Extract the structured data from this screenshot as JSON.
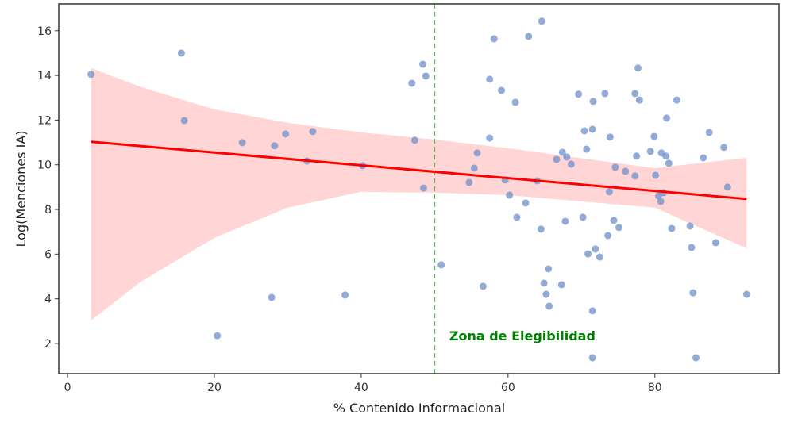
{
  "chart_data": {
    "type": "scatter",
    "title": "",
    "xlabel": "% Contenido Informacional",
    "ylabel": "Log(Menciones IA)",
    "xlim": [
      -1.2,
      96.9
    ],
    "ylim": [
      0.65,
      17.2
    ],
    "xticks": [
      0,
      20,
      40,
      60,
      80
    ],
    "yticks": [
      2,
      4,
      6,
      8,
      10,
      12,
      14,
      16
    ],
    "grid": false,
    "colors": {
      "points": "#6f8fc9",
      "line": "#ff0000",
      "band": "#ffb3b3",
      "threshold": "#5cb85c",
      "annotation": "#008000"
    },
    "threshold_x": 50,
    "annotation": {
      "text": "Zona de Elegibilidad",
      "x": 52,
      "y": 2.15
    },
    "points": [
      [
        3.2,
        14.05
      ],
      [
        15.5,
        15.0
      ],
      [
        15.9,
        11.98
      ],
      [
        20.4,
        2.35
      ],
      [
        23.8,
        10.99
      ],
      [
        27.8,
        4.06
      ],
      [
        28.2,
        10.85
      ],
      [
        29.7,
        11.38
      ],
      [
        32.6,
        10.17
      ],
      [
        33.4,
        11.49
      ],
      [
        37.8,
        4.17
      ],
      [
        40.2,
        9.96
      ],
      [
        46.9,
        13.65
      ],
      [
        47.3,
        11.1
      ],
      [
        48.4,
        14.5
      ],
      [
        48.5,
        8.96
      ],
      [
        48.8,
        13.97
      ],
      [
        50.9,
        5.52
      ],
      [
        54.7,
        9.21
      ],
      [
        55.4,
        9.85
      ],
      [
        55.8,
        10.53
      ],
      [
        56.6,
        4.56
      ],
      [
        57.5,
        11.2
      ],
      [
        57.5,
        13.83
      ],
      [
        58.1,
        15.64
      ],
      [
        59.1,
        13.33
      ],
      [
        59.6,
        9.32
      ],
      [
        60.2,
        8.64
      ],
      [
        61.0,
        12.8
      ],
      [
        61.2,
        7.65
      ],
      [
        62.4,
        8.29
      ],
      [
        62.8,
        15.75
      ],
      [
        64.0,
        9.28
      ],
      [
        64.5,
        7.12
      ],
      [
        64.6,
        16.43
      ],
      [
        64.9,
        4.7
      ],
      [
        65.2,
        4.2
      ],
      [
        65.5,
        5.34
      ],
      [
        65.6,
        3.67
      ],
      [
        66.6,
        10.24
      ],
      [
        67.3,
        4.63
      ],
      [
        67.4,
        10.56
      ],
      [
        67.8,
        7.47
      ],
      [
        68.0,
        10.35
      ],
      [
        68.6,
        10.03
      ],
      [
        69.6,
        13.16
      ],
      [
        70.2,
        7.65
      ],
      [
        70.4,
        11.52
      ],
      [
        70.7,
        10.7
      ],
      [
        70.9,
        6.01
      ],
      [
        71.5,
        11.59
      ],
      [
        71.5,
        3.46
      ],
      [
        71.5,
        1.36
      ],
      [
        71.6,
        12.84
      ],
      [
        71.9,
        6.23
      ],
      [
        72.5,
        5.87
      ],
      [
        73.2,
        13.19
      ],
      [
        73.6,
        6.83
      ],
      [
        73.8,
        8.79
      ],
      [
        73.9,
        11.24
      ],
      [
        74.4,
        7.51
      ],
      [
        74.6,
        9.89
      ],
      [
        75.1,
        7.19
      ],
      [
        76.0,
        9.71
      ],
      [
        77.3,
        9.5
      ],
      [
        77.3,
        13.19
      ],
      [
        77.5,
        10.39
      ],
      [
        77.7,
        14.33
      ],
      [
        77.9,
        12.9
      ],
      [
        79.4,
        10.6
      ],
      [
        79.9,
        11.27
      ],
      [
        80.1,
        9.53
      ],
      [
        80.5,
        8.61
      ],
      [
        80.8,
        8.36
      ],
      [
        80.9,
        10.53
      ],
      [
        81.2,
        8.75
      ],
      [
        81.5,
        10.39
      ],
      [
        81.6,
        12.09
      ],
      [
        81.9,
        10.07
      ],
      [
        82.3,
        7.15
      ],
      [
        83.0,
        12.9
      ],
      [
        84.8,
        7.26
      ],
      [
        85.0,
        6.3
      ],
      [
        85.2,
        4.27
      ],
      [
        85.6,
        1.36
      ],
      [
        86.6,
        10.31
      ],
      [
        87.4,
        11.45
      ],
      [
        88.3,
        6.51
      ],
      [
        89.4,
        10.78
      ],
      [
        89.9,
        9.0
      ],
      [
        92.5,
        4.2
      ]
    ],
    "regression": {
      "x": [
        3.2,
        92.5
      ],
      "y": [
        11.03,
        8.47
      ]
    },
    "confidence_band": {
      "x": [
        3.2,
        10,
        20,
        30,
        40,
        50,
        60,
        80,
        92.5
      ],
      "upper": [
        14.33,
        13.48,
        12.48,
        11.88,
        11.45,
        11.13,
        10.74,
        9.85,
        10.31
      ],
      "lower": [
        3.03,
        4.77,
        6.73,
        8.08,
        8.79,
        8.75,
        8.64,
        8.08,
        6.26
      ]
    }
  }
}
